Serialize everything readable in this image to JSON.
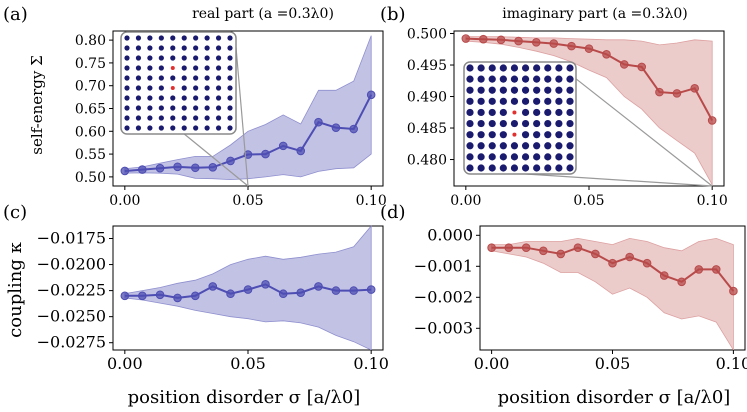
{
  "chart_data": [
    {
      "type": "line",
      "panel_letter": "(a)",
      "title": "real part (a =0.3λ0)",
      "ylabel": "self-energy Σ",
      "xlabel": "",
      "xlim": [
        0,
        0.1
      ],
      "ylim": [
        0.48,
        0.82
      ],
      "yticks": [
        0.5,
        0.55,
        0.6,
        0.65,
        0.7,
        0.75,
        0.8
      ],
      "xticks": [
        0.0,
        0.05,
        0.1
      ],
      "color": "#4d4db3",
      "band_color": "#8f8fcf",
      "series": [
        {
          "x": [
            0,
            0.0071,
            0.0143,
            0.0214,
            0.0286,
            0.0357,
            0.0429,
            0.05,
            0.0571,
            0.0643,
            0.0714,
            0.0786,
            0.0857,
            0.0929,
            0.1
          ],
          "values": [
            0.513,
            0.516,
            0.519,
            0.522,
            0.52,
            0.521,
            0.535,
            0.549,
            0.55,
            0.568,
            0.557,
            0.62,
            0.608,
            0.605,
            0.68
          ],
          "lower": [
            0.508,
            0.509,
            0.508,
            0.506,
            0.497,
            0.496,
            0.494,
            0.496,
            0.5,
            0.505,
            0.5,
            0.512,
            0.518,
            0.52,
            0.55
          ],
          "upper": [
            0.518,
            0.522,
            0.53,
            0.538,
            0.545,
            0.545,
            0.57,
            0.6,
            0.615,
            0.636,
            0.616,
            0.69,
            0.69,
            0.71,
            0.81
          ]
        }
      ]
    },
    {
      "type": "line",
      "panel_letter": "(b)",
      "title": "imaginary part (a =0.3λ0)",
      "ylabel": "",
      "xlabel": "",
      "xlim": [
        0,
        0.1
      ],
      "ylim": [
        0.4758,
        0.5004
      ],
      "yticks": [
        0.48,
        0.485,
        0.49,
        0.495,
        0.5
      ],
      "xticks": [
        0.0,
        0.05,
        0.1
      ],
      "color": "#b84a4a",
      "band_color": "#dda0a0",
      "series": [
        {
          "x": [
            0,
            0.0071,
            0.0143,
            0.0214,
            0.0286,
            0.0357,
            0.0429,
            0.05,
            0.0571,
            0.0643,
            0.0714,
            0.0786,
            0.0857,
            0.0929,
            0.1
          ],
          "values": [
            0.4992,
            0.4991,
            0.499,
            0.4988,
            0.4986,
            0.4984,
            0.498,
            0.4976,
            0.4967,
            0.4951,
            0.4947,
            0.4907,
            0.4905,
            0.4913,
            0.4862
          ],
          "lower": [
            0.4988,
            0.4986,
            0.4983,
            0.4978,
            0.4972,
            0.4965,
            0.4955,
            0.4942,
            0.493,
            0.49,
            0.488,
            0.485,
            0.483,
            0.481,
            0.476
          ],
          "upper": [
            0.4995,
            0.4995,
            0.4995,
            0.4994,
            0.4993,
            0.4993,
            0.4992,
            0.4991,
            0.499,
            0.499,
            0.4988,
            0.4982,
            0.4985,
            0.499,
            0.4988
          ]
        }
      ]
    },
    {
      "type": "line",
      "panel_letter": "(c)",
      "title": "",
      "ylabel": "coupling κ",
      "xlabel": "position disorder σ [a/λ0]",
      "xlim": [
        0,
        0.1
      ],
      "ylim": [
        -0.0282,
        -0.0163
      ],
      "yticks": [
        -0.0175,
        -0.02,
        -0.0225,
        -0.025,
        -0.0275
      ],
      "xticks": [
        0.0,
        0.05,
        0.1
      ],
      "color": "#4d4db3",
      "band_color": "#8f8fcf",
      "series": [
        {
          "x": [
            0,
            0.0071,
            0.0143,
            0.0214,
            0.0286,
            0.0357,
            0.0429,
            0.05,
            0.0571,
            0.0643,
            0.0714,
            0.0786,
            0.0857,
            0.0929,
            0.1
          ],
          "values": [
            -0.023,
            -0.023,
            -0.0229,
            -0.0232,
            -0.023,
            -0.0221,
            -0.0228,
            -0.0224,
            -0.0219,
            -0.0228,
            -0.0227,
            -0.0221,
            -0.0225,
            -0.0225,
            -0.0224
          ],
          "lower": [
            -0.0232,
            -0.0234,
            -0.0237,
            -0.024,
            -0.0244,
            -0.0247,
            -0.025,
            -0.0252,
            -0.0255,
            -0.0254,
            -0.0256,
            -0.026,
            -0.0268,
            -0.0274,
            -0.0282
          ],
          "upper": [
            -0.0228,
            -0.0225,
            -0.0222,
            -0.0218,
            -0.0215,
            -0.0209,
            -0.02,
            -0.0195,
            -0.0192,
            -0.0195,
            -0.0193,
            -0.019,
            -0.0188,
            -0.0183,
            -0.0163
          ]
        }
      ]
    },
    {
      "type": "line",
      "panel_letter": "(d)",
      "title": "",
      "ylabel": "",
      "xlabel": "position disorder σ [a/λ0]",
      "xlim": [
        0,
        0.1
      ],
      "ylim": [
        -0.0037,
        0.0003
      ],
      "yticks": [
        0.0,
        -0.001,
        -0.002,
        -0.003
      ],
      "xticks": [
        0.0,
        0.05,
        0.1
      ],
      "color": "#b84a4a",
      "band_color": "#dda0a0",
      "series": [
        {
          "x": [
            0,
            0.0071,
            0.0143,
            0.0214,
            0.0286,
            0.0357,
            0.0429,
            0.05,
            0.0571,
            0.0643,
            0.0714,
            0.0786,
            0.0857,
            0.0929,
            0.1
          ],
          "values": [
            -0.0004,
            -0.0004,
            -0.0004,
            -0.0005,
            -0.0006,
            -0.0004,
            -0.0006,
            -0.0009,
            -0.0007,
            -0.0009,
            -0.0013,
            -0.0015,
            -0.0011,
            -0.0011,
            -0.0018
          ],
          "lower": [
            -0.0005,
            -0.0006,
            -0.0007,
            -0.0009,
            -0.0012,
            -0.0012,
            -0.0015,
            -0.0019,
            -0.0017,
            -0.002,
            -0.0025,
            -0.0027,
            -0.0026,
            -0.0028,
            -0.0037
          ],
          "upper": [
            -0.0003,
            -0.0003,
            -0.0002,
            -0.0002,
            -0.0002,
            -0.0001,
            -0.0002,
            -0.0003,
            -0.0001,
            -0.0002,
            -0.0004,
            -0.0005,
            -0.0002,
            -0.0001,
            -0.0003
          ]
        }
      ]
    }
  ],
  "insets": [
    {
      "panel": 0,
      "rows": 10,
      "cols": 10,
      "dot_color": "#1a1a6e",
      "highlight_color": "#e03030",
      "highlights": [
        [
          3,
          4
        ],
        [
          5,
          4
        ]
      ]
    },
    {
      "panel": 1,
      "rows": 10,
      "cols": 10,
      "dot_color": "#1a1a6e",
      "highlight_color": "#e03030",
      "highlights": [
        [
          4,
          4
        ],
        [
          6,
          4
        ]
      ]
    }
  ]
}
